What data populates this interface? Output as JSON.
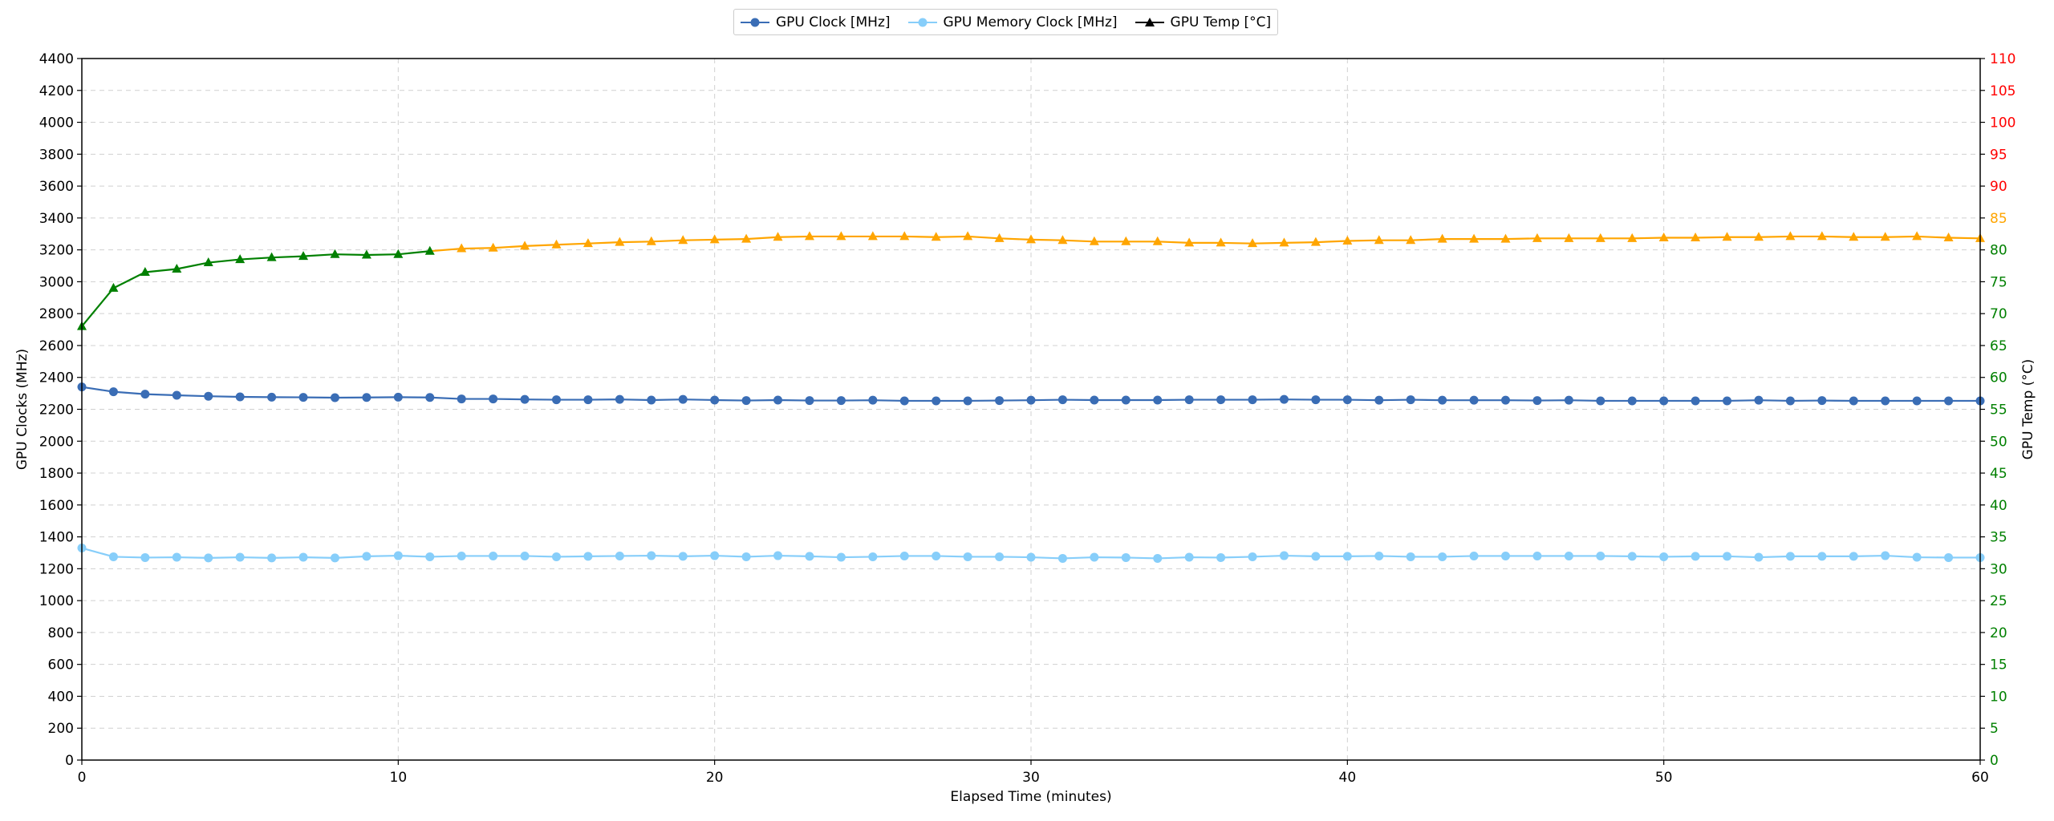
{
  "legend": [
    {
      "name": "GPU Clock [MHz]",
      "color": "#3a6db5",
      "marker": "circle"
    },
    {
      "name": "GPU Memory Clock [MHz]",
      "color": "#87cefa",
      "marker": "circle"
    },
    {
      "name": "GPU Temp [°C]",
      "color": "#000000",
      "marker": "triangle"
    }
  ],
  "colors": {
    "temp_below_threshold": "#008000",
    "temp_above_threshold": "#ffa500",
    "temp_high": "#ff0000"
  },
  "chart_data": {
    "type": "line",
    "xlabel": "Elapsed Time (minutes)",
    "ylabel": "GPU Clocks (MHz)",
    "y2label": "GPU Temp (°C)",
    "xlim": [
      0,
      60
    ],
    "ylim": [
      0,
      4400
    ],
    "y2lim": [
      0,
      110
    ],
    "xticks": [
      0,
      10,
      20,
      30,
      40,
      50,
      60
    ],
    "yticks": [
      0,
      200,
      400,
      600,
      800,
      1000,
      1200,
      1400,
      1600,
      1800,
      2000,
      2200,
      2400,
      2600,
      2800,
      3000,
      3200,
      3400,
      3600,
      3800,
      4000,
      4200,
      4400
    ],
    "y2ticks": [
      0,
      5,
      10,
      15,
      20,
      25,
      30,
      35,
      40,
      45,
      50,
      55,
      60,
      65,
      70,
      75,
      80,
      85,
      90,
      95,
      100,
      105,
      110
    ],
    "y2tick_colors": {
      "green_max": 80,
      "orange_max": 85,
      "red_above": 85
    },
    "grid": true,
    "legend_position": "top-center",
    "x": [
      0,
      1,
      2,
      3,
      4,
      5,
      6,
      7,
      8,
      9,
      10,
      11,
      12,
      13,
      14,
      15,
      16,
      17,
      18,
      19,
      20,
      21,
      22,
      23,
      24,
      25,
      26,
      27,
      28,
      29,
      30,
      31,
      32,
      33,
      34,
      35,
      36,
      37,
      38,
      39,
      40,
      41,
      42,
      43,
      44,
      45,
      46,
      47,
      48,
      49,
      50,
      51,
      52,
      53,
      54,
      55,
      56,
      57,
      58,
      59,
      60
    ],
    "series": [
      {
        "name": "GPU Clock [MHz]",
        "axis": "left",
        "color": "#3a6db5",
        "marker": "circle",
        "values": [
          2340,
          2310,
          2295,
          2288,
          2282,
          2278,
          2276,
          2275,
          2273,
          2274,
          2276,
          2274,
          2265,
          2265,
          2262,
          2260,
          2260,
          2262,
          2258,
          2262,
          2258,
          2255,
          2258,
          2255,
          2255,
          2257,
          2253,
          2253,
          2253,
          2255,
          2257,
          2260,
          2258,
          2258,
          2258,
          2260,
          2260,
          2260,
          2262,
          2260,
          2260,
          2257,
          2260,
          2257,
          2257,
          2257,
          2255,
          2257,
          2253,
          2253,
          2253,
          2253,
          2253,
          2257,
          2253,
          2255,
          2253,
          2253,
          2253,
          2253,
          2253
        ]
      },
      {
        "name": "GPU Memory Clock [MHz]",
        "axis": "left",
        "color": "#87cefa",
        "marker": "circle",
        "values": [
          1330,
          1275,
          1270,
          1272,
          1268,
          1272,
          1268,
          1272,
          1268,
          1278,
          1282,
          1275,
          1280,
          1280,
          1280,
          1275,
          1278,
          1280,
          1282,
          1278,
          1282,
          1275,
          1282,
          1278,
          1272,
          1275,
          1280,
          1280,
          1275,
          1275,
          1272,
          1265,
          1272,
          1270,
          1265,
          1272,
          1270,
          1275,
          1282,
          1278,
          1278,
          1280,
          1275,
          1275,
          1280,
          1280,
          1280,
          1280,
          1280,
          1278,
          1275,
          1278,
          1278,
          1272,
          1278,
          1278,
          1278,
          1282,
          1272,
          1270,
          1270
        ]
      },
      {
        "name": "GPU Temp [°C]",
        "axis": "right",
        "marker": "triangle",
        "color_threshold": 80,
        "values": [
          68,
          74,
          76.5,
          77,
          78,
          78.5,
          78.8,
          79,
          79.3,
          79.2,
          79.3,
          79.8,
          80.2,
          80.3,
          80.6,
          80.8,
          81,
          81.2,
          81.3,
          81.5,
          81.6,
          81.7,
          82,
          82.1,
          82.1,
          82.1,
          82.1,
          82,
          82.1,
          81.8,
          81.6,
          81.5,
          81.3,
          81.3,
          81.3,
          81.1,
          81.1,
          81,
          81.1,
          81.2,
          81.4,
          81.5,
          81.5,
          81.7,
          81.7,
          81.7,
          81.8,
          81.8,
          81.8,
          81.8,
          81.9,
          81.9,
          82,
          82,
          82.1,
          82.1,
          82,
          82,
          82.1,
          81.9,
          81.8
        ]
      }
    ]
  }
}
